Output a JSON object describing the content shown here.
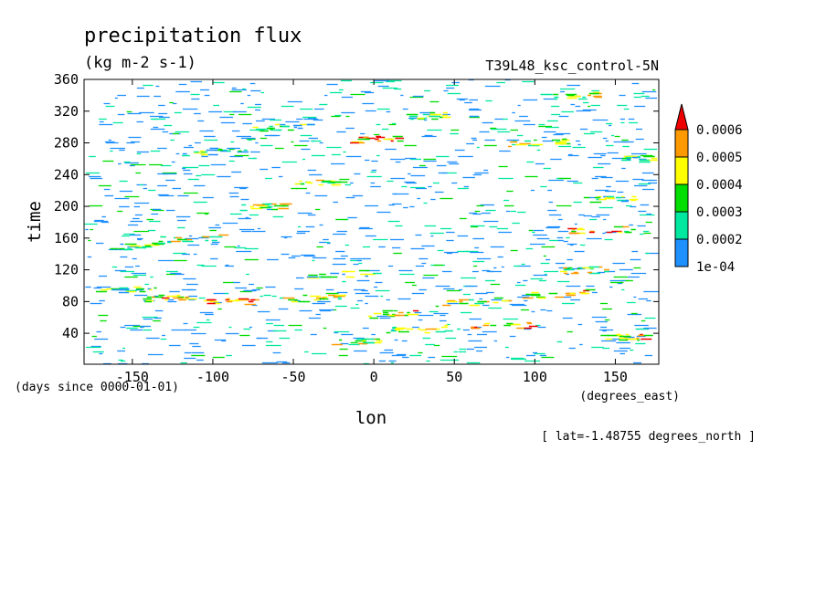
{
  "chart_data": {
    "type": "heatmap",
    "title": "precipitation flux",
    "units": "(kg m-2 s-1)",
    "dataset": "T39L48_ksc_control-5N",
    "xlabel": "lon",
    "xunits": "(degrees_east)",
    "ylabel": "time",
    "yunits": "(days since 0000-01-01)",
    "subset": "[ lat=-1.48755 degrees_north ]",
    "xlim": [
      -180,
      177
    ],
    "ylim": [
      1,
      360
    ],
    "xticks": [
      -150,
      -100,
      -50,
      0,
      50,
      100,
      150
    ],
    "yticks": [
      40,
      80,
      120,
      160,
      200,
      240,
      280,
      320,
      360
    ],
    "colorbar": {
      "levels": [
        0.0001,
        0.0002,
        0.0003,
        0.0004,
        0.0005,
        0.0006
      ],
      "labels": [
        "1e-04",
        "0.0002",
        "0.0003",
        "0.0004",
        "0.0005",
        "0.0006"
      ],
      "colors": [
        "#1e90ff",
        "#00e8a0",
        "#00dd00",
        "#ffff00",
        "#ff9900",
        "#ee0000"
      ],
      "extend": "max"
    },
    "features": [
      {
        "lon": -150,
        "time": 150,
        "len": 30,
        "level": 3
      },
      {
        "lon": -155,
        "time": 95,
        "len": 40,
        "level": 3
      },
      {
        "lon": -130,
        "time": 85,
        "len": 30,
        "level": 5
      },
      {
        "lon": -115,
        "time": 160,
        "len": 40,
        "level": 4
      },
      {
        "lon": -90,
        "time": 80,
        "len": 35,
        "level": 5
      },
      {
        "lon": -100,
        "time": 270,
        "len": 40,
        "level": 3
      },
      {
        "lon": -70,
        "time": 200,
        "len": 30,
        "level": 4
      },
      {
        "lon": -60,
        "time": 300,
        "len": 40,
        "level": 3
      },
      {
        "lon": -40,
        "time": 85,
        "len": 40,
        "level": 4
      },
      {
        "lon": -35,
        "time": 230,
        "len": 30,
        "level": 4
      },
      {
        "lon": -20,
        "time": 115,
        "len": 45,
        "level": 3
      },
      {
        "lon": -10,
        "time": 30,
        "len": 35,
        "level": 4
      },
      {
        "lon": 0,
        "time": 285,
        "len": 30,
        "level": 5
      },
      {
        "lon": 10,
        "time": 65,
        "len": 30,
        "level": 5
      },
      {
        "lon": 30,
        "time": 45,
        "len": 45,
        "level": 4
      },
      {
        "lon": 40,
        "time": 315,
        "len": 40,
        "level": 3
      },
      {
        "lon": 60,
        "time": 80,
        "len": 45,
        "level": 4
      },
      {
        "lon": 80,
        "time": 50,
        "len": 40,
        "level": 5
      },
      {
        "lon": 100,
        "time": 280,
        "len": 40,
        "level": 4
      },
      {
        "lon": 110,
        "time": 90,
        "len": 45,
        "level": 5
      },
      {
        "lon": 120,
        "time": 340,
        "len": 35,
        "level": 4
      },
      {
        "lon": 130,
        "time": 120,
        "len": 30,
        "level": 4
      },
      {
        "lon": 140,
        "time": 170,
        "len": 40,
        "level": 5
      },
      {
        "lon": 150,
        "time": 210,
        "len": 40,
        "level": 3
      },
      {
        "lon": 155,
        "time": 35,
        "len": 30,
        "level": 5
      },
      {
        "lon": 165,
        "time": 260,
        "len": 25,
        "level": 3
      }
    ]
  }
}
